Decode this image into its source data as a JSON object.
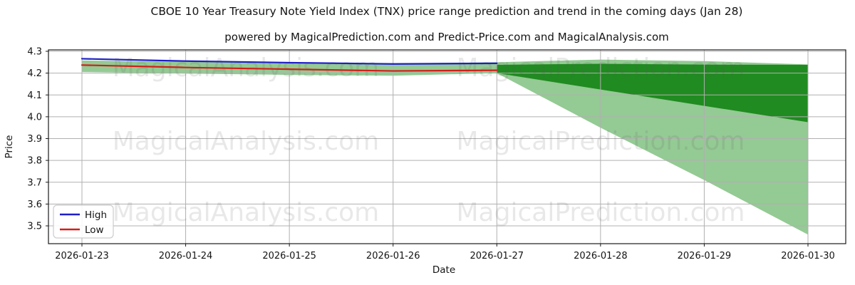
{
  "figure": {
    "title": "CBOE 10 Year Treasury Note Yield Index (TNX) price range prediction and trend in the coming days (Jan 28)",
    "subtitle": "powered by MagicalPrediction.com and Predict-Price.com and MagicalAnalysis.com"
  },
  "watermark": {
    "left": "MagicalAnalysis.com",
    "right": "MagicalPrediction.com"
  },
  "chart_data": {
    "type": "line",
    "title": "CBOE 10 Year Treasury Note Yield Index (TNX) price range prediction and trend in the coming days (Jan 28)",
    "subtitle": "powered by MagicalPrediction.com and Predict-Price.com and MagicalAnalysis.com",
    "xlabel": "Date",
    "ylabel": "Price",
    "x_categories": [
      "2026-01-23",
      "2026-01-24",
      "2026-01-25",
      "2026-01-26",
      "2026-01-27",
      "2026-01-28",
      "2026-01-29",
      "2026-01-30"
    ],
    "y_ticks": [
      "4.3",
      "4.2",
      "4.1",
      "4.0",
      "3.9",
      "3.8",
      "3.7",
      "3.6",
      "3.5"
    ],
    "ylim": [
      3.418,
      4.306
    ],
    "grid": true,
    "grid_color": "#b0b0b0",
    "legend_position": "lower left",
    "series": [
      {
        "name": "High",
        "color": "#1e1ec8",
        "x_idx": [
          0,
          1,
          2,
          3,
          4
        ],
        "values": [
          4.266,
          4.255,
          4.248,
          4.242,
          4.245
        ]
      },
      {
        "name": "Low",
        "color": "#d21e19",
        "x_idx": [
          0,
          1,
          2,
          3,
          4
        ],
        "values": [
          4.237,
          4.226,
          4.218,
          4.21,
          4.213
        ]
      }
    ],
    "bands": [
      {
        "name": "history-range",
        "color": "rgba(0,128,0,0.42)",
        "x_idx": [
          0,
          1,
          2,
          3,
          4
        ],
        "upper": [
          4.258,
          4.252,
          4.247,
          4.244,
          4.25
        ],
        "lower": [
          4.205,
          4.198,
          4.192,
          4.188,
          4.2
        ]
      },
      {
        "name": "forecast-outer",
        "color": "rgba(0,128,0,0.42)",
        "x_idx": [
          4,
          5,
          6,
          7
        ],
        "upper": [
          4.25,
          4.262,
          4.255,
          4.24
        ],
        "lower": [
          4.2,
          3.95,
          3.71,
          3.46
        ]
      },
      {
        "name": "forecast-inner",
        "color": "rgba(0,122,0,0.78)",
        "x_idx": [
          4,
          5,
          6,
          7
        ],
        "upper": [
          4.238,
          4.243,
          4.239,
          4.238
        ],
        "lower": [
          4.2,
          4.125,
          4.05,
          3.975
        ]
      }
    ]
  }
}
